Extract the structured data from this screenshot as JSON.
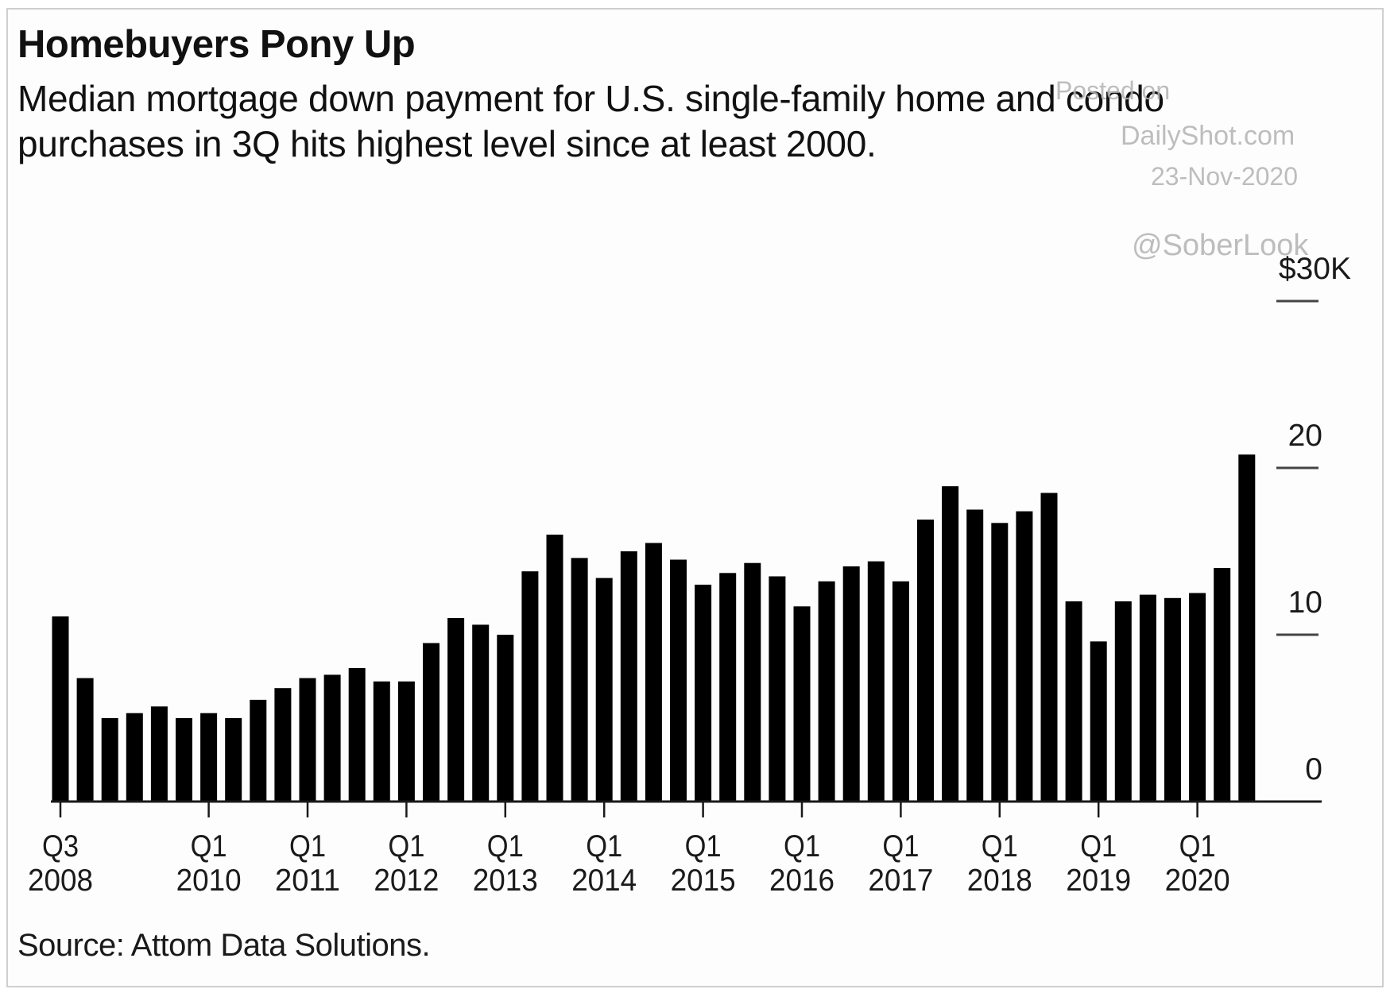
{
  "header": {
    "title": "Homebuyers Pony Up",
    "subtitle": "Median mortgage down payment for U.S. single-family home and condo purchases in 3Q hits highest level since at least 2000."
  },
  "watermark": {
    "line1": "Posted on",
    "line2": "DailyShot.com",
    "line3": "23-Nov-2020",
    "handle": "@SoberLook"
  },
  "footer": {
    "source": "Source: Attom Data Solutions."
  },
  "colors": {
    "bar": "#000000",
    "axis": "#1a1a1a",
    "tick": "#444444",
    "frame": "#cfcfcf",
    "watermark": "#b3b3b3"
  },
  "chart_data": {
    "type": "bar",
    "title": "Homebuyers Pony Up",
    "subtitle": "Median mortgage down payment for U.S. single-family home and condo purchases in 3Q hits highest level since at least 2000.",
    "xlabel": "",
    "ylabel": "",
    "y_unit_label": "$30K",
    "ylim": [
      0,
      30
    ],
    "y_ticks": [
      0,
      10,
      20,
      30
    ],
    "y_tick_labels": [
      "0",
      "10",
      "20",
      "$30K"
    ],
    "y_axis_side": "right",
    "grid": false,
    "categories": [
      "Q3 2008",
      "Q4 2008",
      "Q1 2009",
      "Q2 2009",
      "Q3 2009",
      "Q4 2009",
      "Q1 2010",
      "Q2 2010",
      "Q3 2010",
      "Q4 2010",
      "Q1 2011",
      "Q2 2011",
      "Q3 2011",
      "Q4 2011",
      "Q1 2012",
      "Q2 2012",
      "Q3 2012",
      "Q4 2012",
      "Q1 2013",
      "Q2 2013",
      "Q3 2013",
      "Q4 2013",
      "Q1 2014",
      "Q2 2014",
      "Q3 2014",
      "Q4 2014",
      "Q1 2015",
      "Q2 2015",
      "Q3 2015",
      "Q4 2015",
      "Q1 2016",
      "Q2 2016",
      "Q3 2016",
      "Q4 2016",
      "Q1 2017",
      "Q2 2017",
      "Q3 2017",
      "Q4 2017",
      "Q1 2018",
      "Q2 2018",
      "Q3 2018",
      "Q4 2018",
      "Q1 2019",
      "Q2 2019",
      "Q3 2019",
      "Q4 2019",
      "Q1 2020",
      "Q2 2020",
      "Q3 2020"
    ],
    "values": [
      11.1,
      7.4,
      5.0,
      5.3,
      5.7,
      5.0,
      5.3,
      5.0,
      6.1,
      6.8,
      7.4,
      7.6,
      8.0,
      7.2,
      7.2,
      9.5,
      11.0,
      10.6,
      10.0,
      13.8,
      16.0,
      14.6,
      13.4,
      15.0,
      15.5,
      14.5,
      13.0,
      13.7,
      14.3,
      13.5,
      11.7,
      13.2,
      14.1,
      14.4,
      13.2,
      16.9,
      18.9,
      17.5,
      16.7,
      17.4,
      18.5,
      12.0,
      9.6,
      12.0,
      12.4,
      12.2,
      12.5,
      14.0,
      20.8
    ],
    "x_ticks": [
      {
        "index": 0,
        "line1": "Q3",
        "line2": "2008"
      },
      {
        "index": 6,
        "line1": "Q1",
        "line2": "2010"
      },
      {
        "index": 10,
        "line1": "Q1",
        "line2": "2011"
      },
      {
        "index": 14,
        "line1": "Q1",
        "line2": "2012"
      },
      {
        "index": 18,
        "line1": "Q1",
        "line2": "2013"
      },
      {
        "index": 22,
        "line1": "Q1",
        "line2": "2014"
      },
      {
        "index": 26,
        "line1": "Q1",
        "line2": "2015"
      },
      {
        "index": 30,
        "line1": "Q1",
        "line2": "2016"
      },
      {
        "index": 34,
        "line1": "Q1",
        "line2": "2017"
      },
      {
        "index": 38,
        "line1": "Q1",
        "line2": "2018"
      },
      {
        "index": 42,
        "line1": "Q1",
        "line2": "2019"
      },
      {
        "index": 46,
        "line1": "Q1",
        "line2": "2020"
      }
    ],
    "source": "Source: Attom Data Solutions."
  }
}
